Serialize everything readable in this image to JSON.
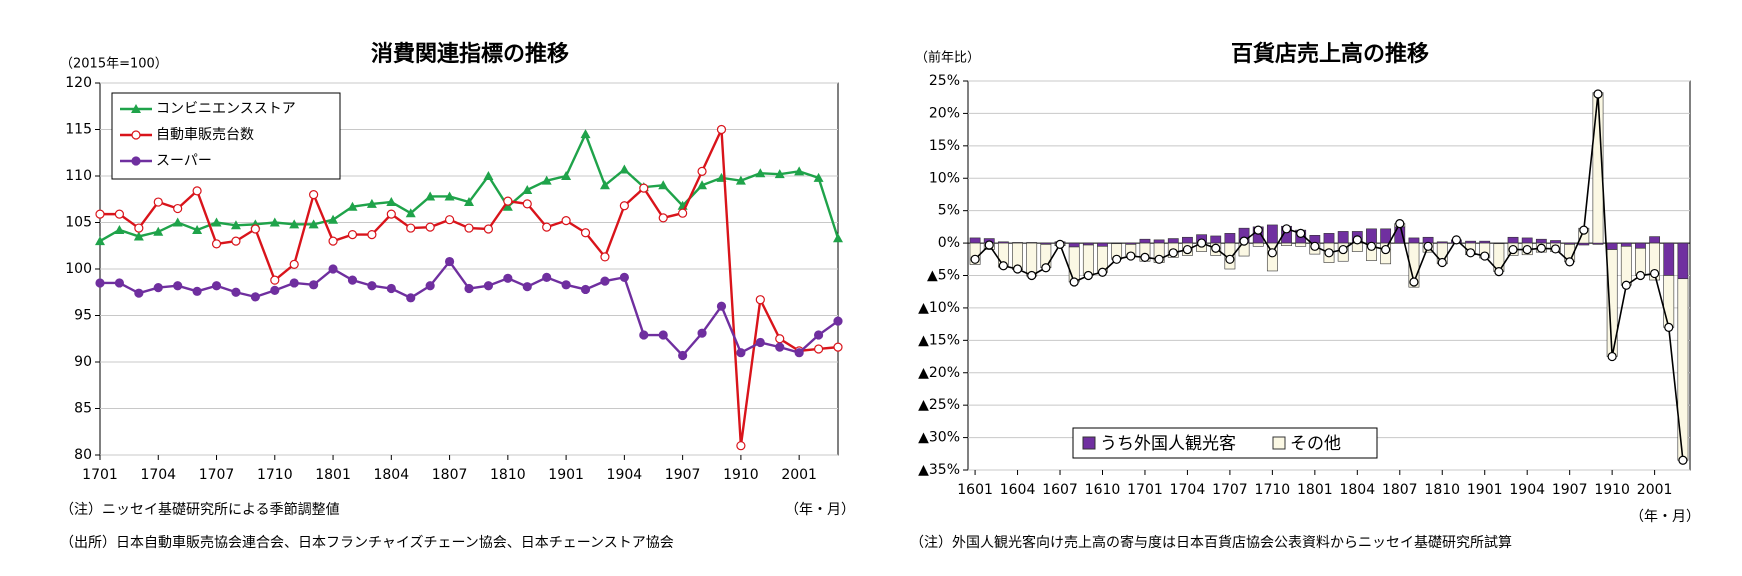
{
  "chart_data": [
    {
      "type": "line",
      "title": "消費関連指標の推移",
      "unit_label": "（2015年=100）",
      "x_label": "（年・月）",
      "notes": [
        "（注）ニッセイ基礎研究所による季節調整値",
        "（出所）日本自動車販売協会連合会、日本フランチャイズチェーン協会、日本チェーンストア協会"
      ],
      "categories": [
        "1701",
        null,
        null,
        "1704",
        null,
        null,
        "1707",
        null,
        null,
        "1710",
        null,
        null,
        "1801",
        null,
        null,
        "1804",
        null,
        null,
        "1807",
        null,
        null,
        "1810",
        null,
        null,
        "1901",
        null,
        null,
        "1904",
        null,
        null,
        "1907",
        null,
        null,
        "1910",
        null,
        null,
        "2001",
        null,
        null
      ],
      "ylim": [
        80,
        120
      ],
      "yticks": [
        80,
        85,
        90,
        95,
        100,
        105,
        110,
        115,
        120
      ],
      "grid": true,
      "legend": "top-left",
      "series": [
        {
          "name": "コンビニエンスストア",
          "color": "#1fa34a",
          "marker": "triangle",
          "values": [
            103.0,
            104.2,
            103.5,
            104.0,
            105.0,
            104.2,
            105.0,
            104.7,
            104.8,
            105.0,
            104.8,
            104.8,
            105.3,
            106.7,
            107.0,
            107.2,
            106.0,
            107.8,
            107.8,
            107.2,
            110.0,
            106.7,
            108.5,
            109.5,
            110.0,
            114.5,
            109.0,
            110.7,
            108.8,
            109.0,
            106.8,
            109.0,
            109.8,
            109.5,
            110.3,
            110.2,
            110.5,
            109.8,
            103.3
          ]
        },
        {
          "name": "自動車販売台数",
          "color": "#d9141b",
          "marker": "circle-open",
          "values": [
            105.9,
            105.9,
            104.4,
            107.2,
            106.5,
            108.4,
            102.7,
            103.0,
            104.3,
            98.8,
            100.5,
            108.0,
            103.0,
            103.7,
            103.7,
            105.9,
            104.4,
            104.5,
            105.3,
            104.4,
            104.3,
            107.3,
            107.0,
            104.5,
            105.2,
            103.9,
            101.3,
            106.8,
            108.7,
            105.5,
            106.0,
            110.5,
            115.0,
            81.0,
            96.7,
            92.5,
            91.2,
            91.4,
            91.6
          ]
        },
        {
          "name": "スーパー",
          "color": "#6f2f9f",
          "marker": "circle",
          "values": [
            98.5,
            98.5,
            97.4,
            98.0,
            98.2,
            97.6,
            98.2,
            97.5,
            97.0,
            97.7,
            98.5,
            98.3,
            100.0,
            98.8,
            98.2,
            97.9,
            96.9,
            98.2,
            100.8,
            97.9,
            98.2,
            99.0,
            98.1,
            99.1,
            98.3,
            97.8,
            98.7,
            99.1,
            92.9,
            92.9,
            90.7,
            93.1,
            96.0,
            91.0,
            92.1,
            91.6,
            91.0,
            92.9,
            94.4
          ]
        }
      ]
    },
    {
      "type": "bar",
      "stacked": true,
      "title": "百貨店売上高の推移",
      "unit_label": "（前年比）",
      "x_label": "（年・月）",
      "notes": [
        "（注）外国人観光客向け売上高の寄与度は日本百貨店協会公表資料からニッセイ基礎研究所試算"
      ],
      "categories": [
        "1601",
        null,
        null,
        "1604",
        null,
        null,
        "1607",
        null,
        null,
        "1610",
        null,
        null,
        "1701",
        null,
        null,
        "1704",
        null,
        null,
        "1707",
        null,
        null,
        "1710",
        null,
        null,
        "1801",
        null,
        null,
        "1804",
        null,
        null,
        "1807",
        null,
        null,
        "1810",
        null,
        null,
        "1901",
        null,
        null,
        "1904",
        null,
        null,
        "1907",
        null,
        null,
        "1910",
        null,
        null,
        "2001",
        null,
        null
      ],
      "ylim": [
        -35,
        25
      ],
      "yticks": [
        {
          "value": -35,
          "label": "▲35%"
        },
        {
          "value": -30,
          "label": "▲30%"
        },
        {
          "value": -25,
          "label": "▲25%"
        },
        {
          "value": -20,
          "label": "▲20%"
        },
        {
          "value": -15,
          "label": "▲15%"
        },
        {
          "value": -10,
          "label": "▲10%"
        },
        {
          "value": -5,
          "label": "▲5%"
        },
        {
          "value": 0,
          "label": "0%"
        },
        {
          "value": 5,
          "label": "5%"
        },
        {
          "value": 10,
          "label": "10%"
        },
        {
          "value": 15,
          "label": "15%"
        },
        {
          "value": 20,
          "label": "20%"
        },
        {
          "value": 25,
          "label": "25%"
        }
      ],
      "grid": true,
      "legend": "bottom-left",
      "series": [
        {
          "name": "うち外国人観光客",
          "color": "#7030a0",
          "values": [
            0.8,
            0.7,
            0.2,
            0.1,
            0.1,
            -0.2,
            0.2,
            -0.6,
            -0.3,
            -0.5,
            -0.1,
            -0.2,
            0.6,
            0.5,
            0.7,
            0.9,
            1.3,
            1.1,
            1.5,
            2.3,
            2.5,
            2.8,
            2.6,
            2.0,
            1.2,
            1.5,
            1.8,
            1.8,
            2.2,
            2.2,
            2.5,
            0.8,
            0.9,
            0.2,
            0.5,
            0.3,
            0.3,
            -0.1,
            0.9,
            0.8,
            0.6,
            0.4,
            -0.2,
            -0.3,
            -0.2,
            -1.0,
            -0.5,
            -0.8,
            1.0,
            -5.0,
            -5.5
          ]
        },
        {
          "name": "その他",
          "color": "#fbf8e4",
          "values": [
            -3.3,
            -1.0,
            -3.7,
            -4.1,
            -5.1,
            -3.6,
            -0.4,
            -5.4,
            -4.7,
            -4.0,
            -2.4,
            -1.8,
            -2.8,
            -3.0,
            -2.2,
            -1.9,
            -1.3,
            -1.9,
            -4.0,
            -2.0,
            -0.5,
            -4.3,
            -0.4,
            -0.5,
            -1.7,
            -3.0,
            -2.8,
            -1.3,
            -2.7,
            -3.2,
            0.5,
            -6.8,
            -1.4,
            -3.2,
            0.0,
            -1.8,
            -2.3,
            -4.3,
            -1.9,
            -1.8,
            -1.4,
            -1.3,
            -2.7,
            2.3,
            23.2,
            -16.5,
            -6.0,
            -4.2,
            -5.7,
            -8.0,
            -28.0
          ]
        },
        {
          "type": "line",
          "color": "#000000",
          "values": [
            -2.5,
            -0.3,
            -3.5,
            -4.0,
            -5.0,
            -3.8,
            -0.2,
            -6.0,
            -5.0,
            -4.5,
            -2.5,
            -2.0,
            -2.2,
            -2.5,
            -1.5,
            -1.0,
            0.0,
            -0.8,
            -2.5,
            0.3,
            2.0,
            -1.5,
            2.2,
            1.5,
            -0.5,
            -1.5,
            -1.0,
            0.5,
            -0.5,
            -1.0,
            3.0,
            -6.0,
            -0.5,
            -3.0,
            0.5,
            -1.5,
            -2.0,
            -4.4,
            -1.0,
            -1.0,
            -0.8,
            -0.9,
            -2.9,
            2.0,
            23.0,
            -17.5,
            -6.5,
            -5.0,
            -4.7,
            -13.0,
            -33.5
          ]
        }
      ]
    }
  ]
}
